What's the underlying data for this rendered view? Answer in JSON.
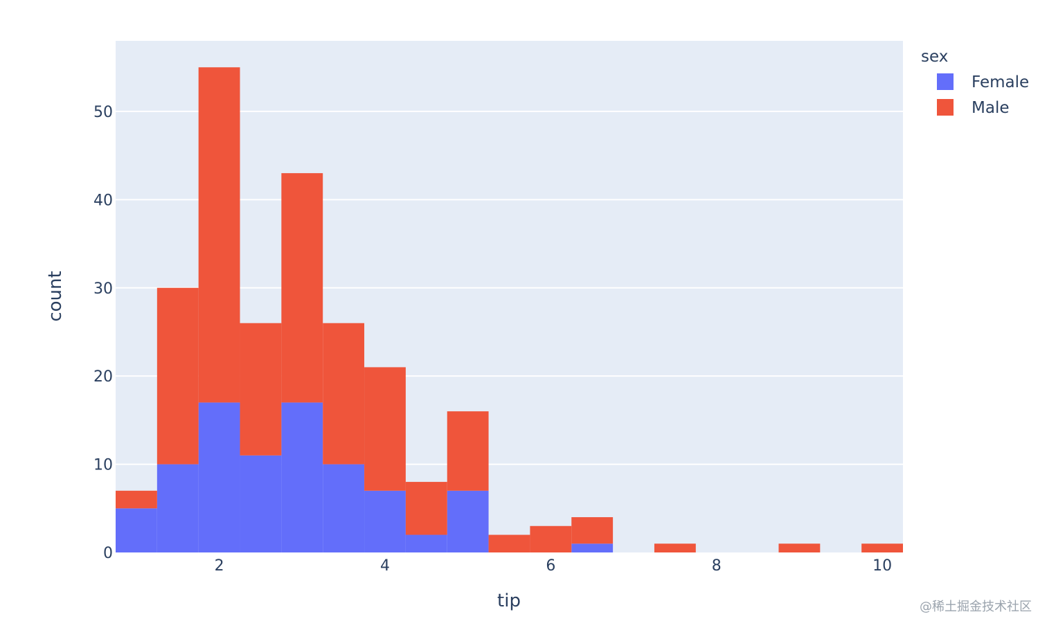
{
  "chart_data": {
    "type": "bar",
    "barmode": "stack",
    "bin_edges": [
      0.75,
      1.25,
      1.75,
      2.25,
      2.75,
      3.25,
      3.75,
      4.25,
      4.75,
      5.25,
      5.75,
      6.25,
      6.75,
      7.25,
      7.75,
      8.25,
      8.75,
      9.25,
      9.75,
      10.25
    ],
    "series": [
      {
        "name": "Female",
        "color": "#636efa",
        "values": [
          5,
          10,
          17,
          11,
          17,
          10,
          7,
          2,
          7,
          0,
          0,
          1,
          0,
          0,
          0,
          0,
          0,
          0,
          0
        ]
      },
      {
        "name": "Male",
        "color": "#ef553b",
        "values": [
          2,
          20,
          38,
          15,
          26,
          16,
          14,
          6,
          9,
          2,
          3,
          3,
          0,
          1,
          0,
          0,
          1,
          0,
          1
        ]
      }
    ],
    "xlabel": "tip",
    "ylabel": "count",
    "xlim": [
      0.75,
      10.25
    ],
    "ylim": [
      0,
      58
    ],
    "x_ticks": [
      2,
      4,
      6,
      8,
      10
    ],
    "y_ticks": [
      0,
      10,
      20,
      30,
      40,
      50
    ],
    "grid": true,
    "legend": {
      "title": "sex",
      "placement": "right"
    },
    "plot_bgcolor": "#e5ecf6"
  },
  "watermark": "@稀土掘金技术社区"
}
